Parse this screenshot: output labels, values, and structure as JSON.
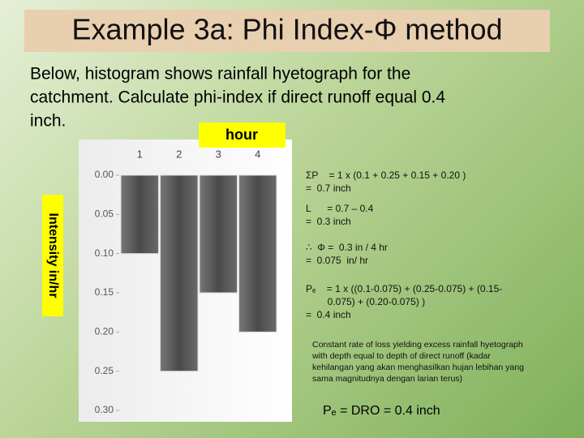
{
  "title": "Example 3a: Phi Index-Φ method",
  "intro": [
    "Below, histogram shows rainfall hyetograph for the",
    "catchment.  Calculate phi-index if direct runoff equal 0.4",
    "inch."
  ],
  "chart_data": {
    "type": "bar",
    "x_label": "hour",
    "y_label": "Intensity in/hr",
    "categories": [
      "1",
      "2",
      "3",
      "4"
    ],
    "values": [
      0.1,
      0.25,
      0.15,
      0.2
    ],
    "color": "#5a5a5a",
    "ylim": [
      0,
      0.3
    ],
    "y_inverted": true,
    "yticks": [
      {
        "value": 0,
        "label": "0.00"
      },
      {
        "value": 0.05,
        "label": "0.05"
      },
      {
        "value": 0.1,
        "label": "0.10"
      },
      {
        "value": 0.15,
        "label": "0.15"
      },
      {
        "value": 0.2,
        "label": "0.20"
      },
      {
        "value": 0.25,
        "label": "0.25"
      },
      {
        "value": 0.3,
        "label": "0.30"
      }
    ],
    "grid": false
  },
  "notes": [
    [
      "ΣP    = 1 x (0.1 + 0.25 + 0.15 + 0.20 )",
      "=  0.7 inch"
    ],
    [
      "L      = 0.7 – 0.4",
      "=  0.3 inch"
    ],
    [
      "∴  Φ =  0.3 in / 4 hr",
      "=  0.075  in/ hr"
    ],
    [
      "Pₑ    = 1 x ((0.1-0.075) + (0.25-0.075) + (0.15-",
      "        0.075) + (0.20-0.075) )",
      "=  0.4 inch"
    ]
  ],
  "explanation": [
    "Constant rate of loss yielding excess rainfall hyetograph",
    "with depth equal to depth of direct runoff (kadar",
    "kehilangan yang akan menghasilkan hujan lebihan yang",
    "sama magnitudnya dengan larian terus)"
  ],
  "conclusion": "Pₑ  =  DRO  = 0.4 inch"
}
